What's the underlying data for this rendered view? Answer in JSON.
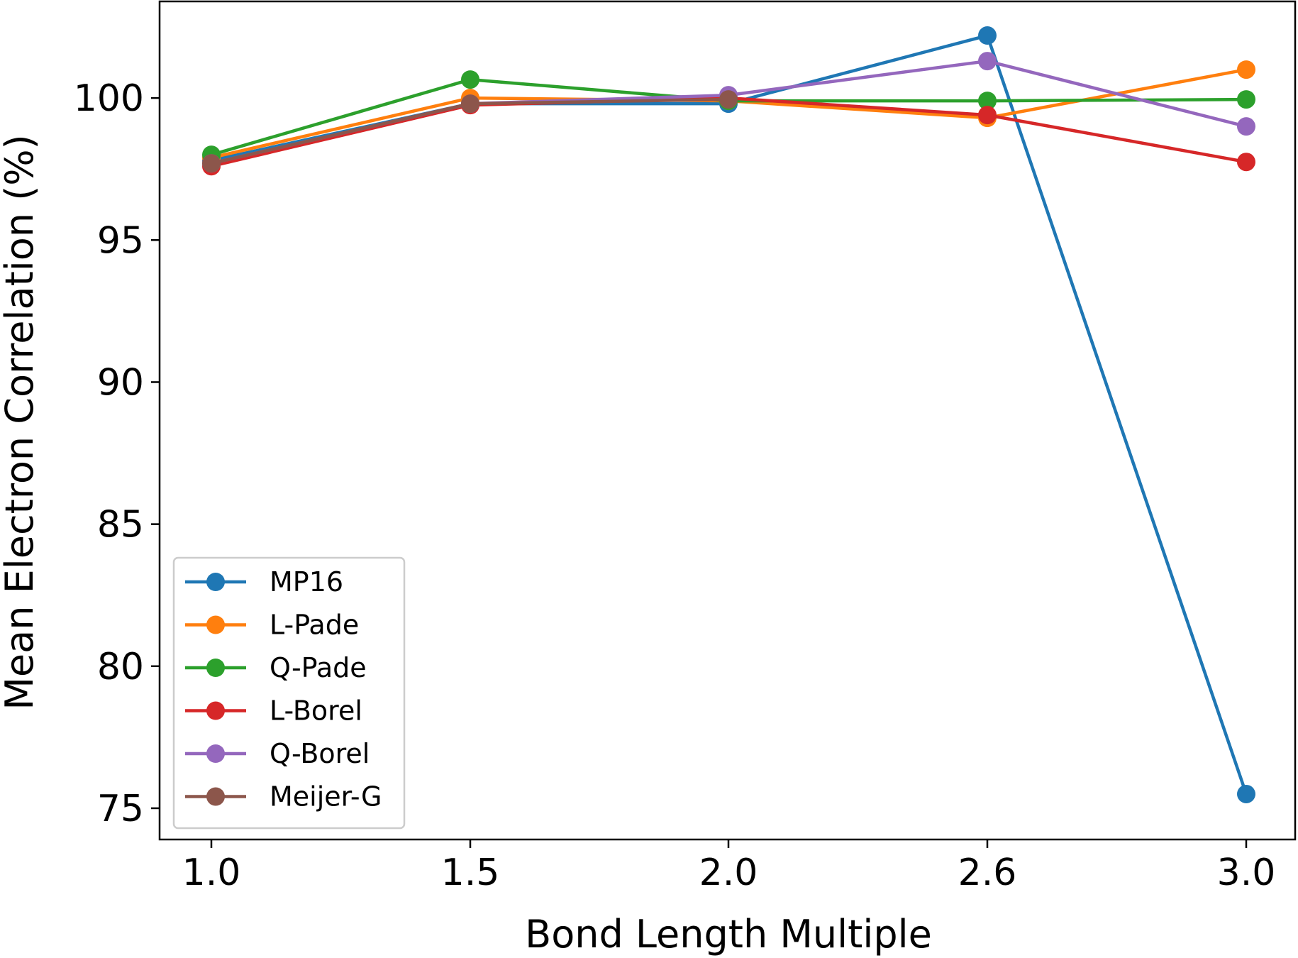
{
  "chart_data": {
    "type": "line",
    "title": "",
    "xlabel": "Bond Length Multiple",
    "ylabel": "Mean Electron Correlation (%)",
    "x": [
      1.0,
      1.5,
      2.0,
      2.6,
      3.0
    ],
    "x_tick_labels": [
      "1.0",
      "1.5",
      "2.0",
      "2.6",
      "3.0"
    ],
    "y_ticks": [
      75,
      80,
      85,
      90,
      95,
      100
    ],
    "ylim": [
      73.9,
      103.4
    ],
    "grid": false,
    "legend_position": "lower-left",
    "series": [
      {
        "name": "MP16",
        "color": "#1f77b4",
        "values": [
          97.8,
          99.8,
          99.8,
          102.2,
          75.5
        ]
      },
      {
        "name": "L-Pade",
        "color": "#ff7f0e",
        "values": [
          97.9,
          100.0,
          99.9,
          99.3,
          101.0
        ]
      },
      {
        "name": "Q-Pade",
        "color": "#2ca02c",
        "values": [
          98.0,
          100.65,
          99.9,
          99.9,
          99.95
        ]
      },
      {
        "name": "L-Borel",
        "color": "#d62728",
        "values": [
          97.6,
          99.75,
          100.0,
          99.4,
          97.75
        ]
      },
      {
        "name": "Q-Borel",
        "color": "#9467bd",
        "values": [
          97.7,
          99.8,
          100.1,
          101.3,
          99.0
        ]
      },
      {
        "name": "Meijer-G",
        "color": "#8c564b",
        "values": [
          97.7,
          99.8,
          99.95,
          null,
          null
        ]
      }
    ]
  }
}
